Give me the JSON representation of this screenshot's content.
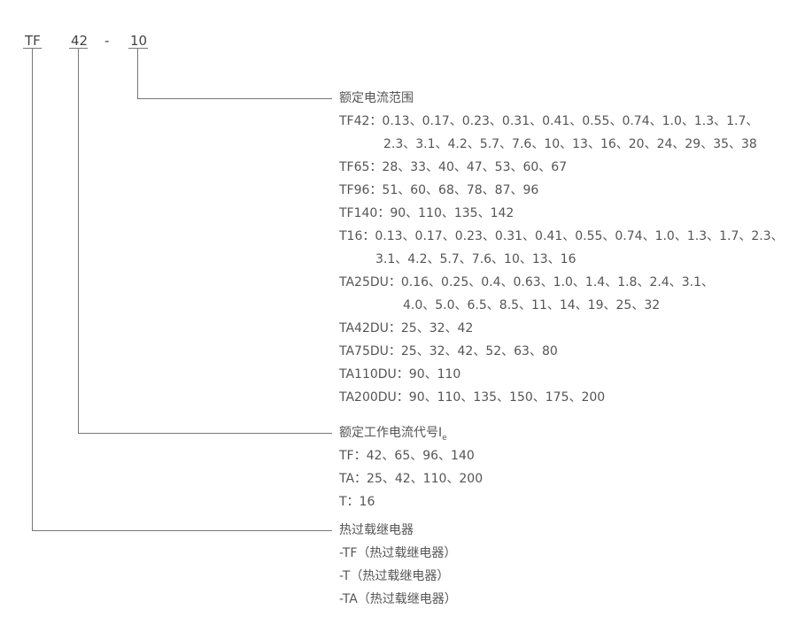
{
  "code": {
    "p1": "TF",
    "p2": "42",
    "sep": "-",
    "p3": "10"
  },
  "range": {
    "title": "额定电流范围",
    "rows": [
      "TF42：0.13、0.17、0.23、0.31、0.41、0.55、0.74、1.0、1.3、1.7、",
      "2.3、3.1、4.2、5.7、7.6、10、13、16、20、24、29、35、38",
      "TF65：28、33、40、47、53、60、67",
      "TF96：51、60、68、78、87、96",
      "TF140：90、110、135、142",
      "T16：0.13、0.17、0.23、0.31、0.41、0.55、0.74、1.0、1.3、1.7、2.3、",
      "3.1、4.2、5.7、7.6、10、13、16",
      "TA25DU：0.16、0.25、0.4、0.63、1.0、1.4、1.8、2.4、3.1、",
      "4.0、5.0、6.5、8.5、11、14、19、25、32",
      "TA42DU：25、32、42",
      "TA75DU：25、32、42、52、63、80",
      "TA110DU：90、110",
      "TA200DU：90、110、135、150、175、200"
    ]
  },
  "current": {
    "title": "额定工作电流代号I",
    "sub": "e",
    "rows": [
      "TF：42、65、96、140",
      "TA：25、42、110、200",
      "T：16"
    ]
  },
  "relay": {
    "title": "热过载继电器",
    "rows": [
      "-TF（热过载继电器）",
      "-T（热过载继电器）",
      "-TA（热过载继电器）"
    ]
  }
}
